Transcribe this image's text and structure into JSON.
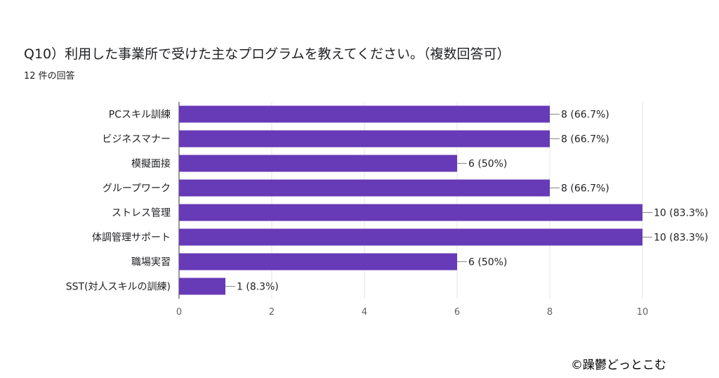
{
  "header": {
    "title": "Q10）利用した事業所で受けた主なプログラムを教えてください。（複数回答可）",
    "response_count": "12 件の回答"
  },
  "chart_data": {
    "type": "bar",
    "orientation": "horizontal",
    "categories": [
      "PCスキル訓練",
      "ビジネスマナー",
      "模擬面接",
      "グループワーク",
      "ストレス管理",
      "体調管理サポート",
      "職場実習",
      "SST(対人スキルの訓練)"
    ],
    "values": [
      8,
      8,
      6,
      8,
      10,
      10,
      6,
      1
    ],
    "data_labels": [
      "8 (66.7%)",
      "8 (66.7%)",
      "6 (50%)",
      "8 (66.7%)",
      "10 (83.3%)",
      "10 (83.3%)",
      "6 (50%)",
      "1 (8.3%)"
    ],
    "xlim": [
      0,
      10
    ],
    "xticks": [
      "0",
      "2",
      "4",
      "6",
      "8",
      "10"
    ],
    "grid": true,
    "bar_color": "#673ab7",
    "grid_color": "#e6e6e6",
    "axis_color": "#333333"
  },
  "footer": {
    "copyright": "©躁鬱どっとこむ"
  }
}
